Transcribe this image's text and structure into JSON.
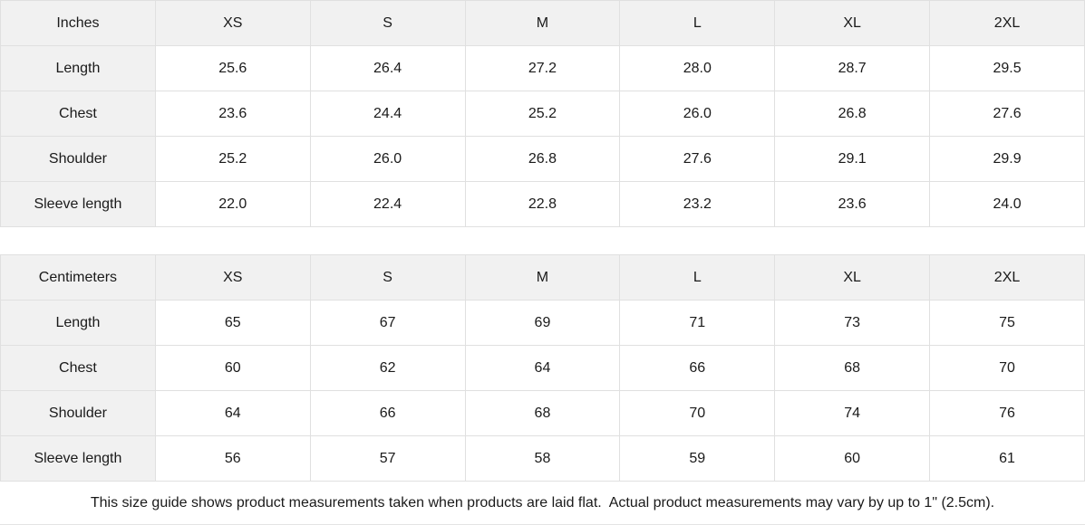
{
  "colors": {
    "header_bg": "#f1f1f1",
    "border": "#e0e0e0",
    "text": "#1a1a1a",
    "page_bg": "#ffffff"
  },
  "tables": [
    {
      "unit_label": "Inches",
      "sizes": [
        "XS",
        "S",
        "M",
        "L",
        "XL",
        "2XL"
      ],
      "rows": [
        {
          "label": "Length",
          "values": [
            "25.6",
            "26.4",
            "27.2",
            "28.0",
            "28.7",
            "29.5"
          ]
        },
        {
          "label": "Chest",
          "values": [
            "23.6",
            "24.4",
            "25.2",
            "26.0",
            "26.8",
            "27.6"
          ]
        },
        {
          "label": "Shoulder",
          "values": [
            "25.2",
            "26.0",
            "26.8",
            "27.6",
            "29.1",
            "29.9"
          ]
        },
        {
          "label": "Sleeve length",
          "values": [
            "22.0",
            "22.4",
            "22.8",
            "23.2",
            "23.6",
            "24.0"
          ]
        }
      ]
    },
    {
      "unit_label": "Centimeters",
      "sizes": [
        "XS",
        "S",
        "M",
        "L",
        "XL",
        "2XL"
      ],
      "rows": [
        {
          "label": "Length",
          "values": [
            "65",
            "67",
            "69",
            "71",
            "73",
            "75"
          ]
        },
        {
          "label": "Chest",
          "values": [
            "60",
            "62",
            "64",
            "66",
            "68",
            "70"
          ]
        },
        {
          "label": "Shoulder",
          "values": [
            "64",
            "66",
            "68",
            "70",
            "74",
            "76"
          ]
        },
        {
          "label": "Sleeve length",
          "values": [
            "56",
            "57",
            "58",
            "59",
            "60",
            "61"
          ]
        }
      ]
    }
  ],
  "footer": {
    "note": "This size guide shows product measurements taken when products are laid flat.  Actual product measurements may vary by up to 1\" (2.5cm)."
  }
}
